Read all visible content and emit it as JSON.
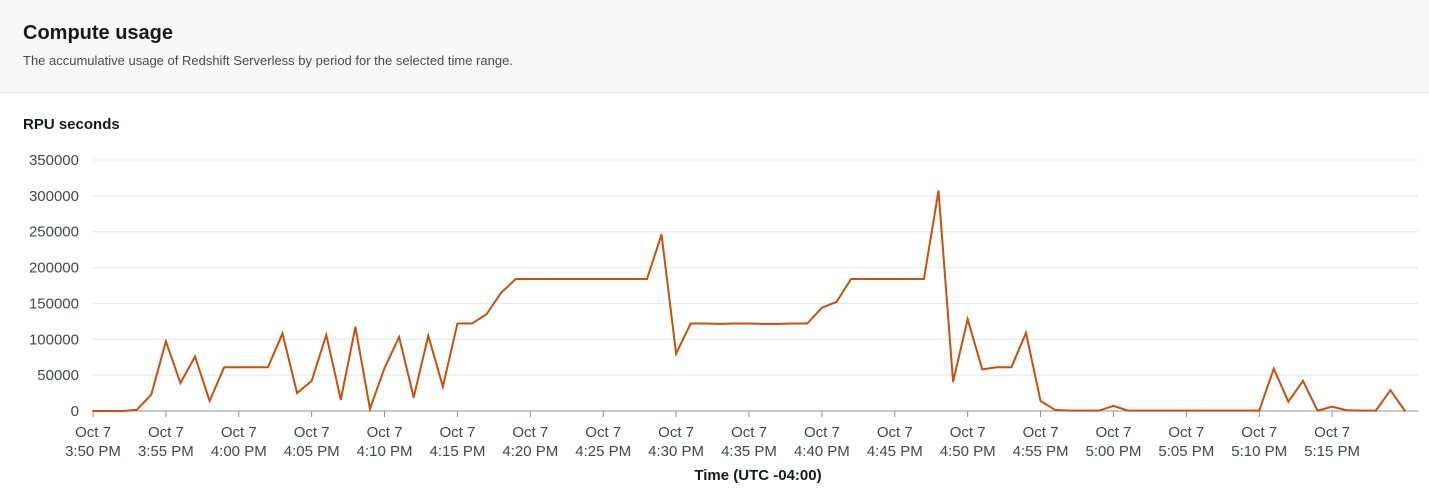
{
  "header": {
    "title": "Compute usage",
    "subtitle": "The accumulative usage of Redshift Serverless by period for the selected time range."
  },
  "colors": {
    "series": "#c7510b",
    "grid": "#e2e4e7",
    "axis": "#8c9198",
    "header_bg": "#f8f8f8"
  },
  "chart_data": {
    "type": "line",
    "ylabel": "RPU seconds",
    "xlabel": "Time (UTC -04:00)",
    "ylim": [
      0,
      350000
    ],
    "yticks": [
      0,
      50000,
      100000,
      150000,
      200000,
      250000,
      300000,
      350000
    ],
    "ytick_labels": [
      "0",
      "50000",
      "100000",
      "150000",
      "200000",
      "250000",
      "300000",
      "350000"
    ],
    "grid": true,
    "xlim_minutes": [
      0,
      90
    ],
    "xticks": [
      {
        "minute": 0,
        "date": "Oct 7",
        "time": "3:50 PM"
      },
      {
        "minute": 5,
        "date": "Oct 7",
        "time": "3:55 PM"
      },
      {
        "minute": 10,
        "date": "Oct 7",
        "time": "4:00 PM"
      },
      {
        "minute": 15,
        "date": "Oct 7",
        "time": "4:05 PM"
      },
      {
        "minute": 20,
        "date": "Oct 7",
        "time": "4:10 PM"
      },
      {
        "minute": 25,
        "date": "Oct 7",
        "time": "4:15 PM"
      },
      {
        "minute": 30,
        "date": "Oct 7",
        "time": "4:20 PM"
      },
      {
        "minute": 35,
        "date": "Oct 7",
        "time": "4:25 PM"
      },
      {
        "minute": 40,
        "date": "Oct 7",
        "time": "4:30 PM"
      },
      {
        "minute": 45,
        "date": "Oct 7",
        "time": "4:35 PM"
      },
      {
        "minute": 50,
        "date": "Oct 7",
        "time": "4:40 PM"
      },
      {
        "minute": 55,
        "date": "Oct 7",
        "time": "4:45 PM"
      },
      {
        "minute": 60,
        "date": "Oct 7",
        "time": "4:50 PM"
      },
      {
        "minute": 65,
        "date": "Oct 7",
        "time": "4:55 PM"
      },
      {
        "minute": 70,
        "date": "Oct 7",
        "time": "5:00 PM"
      },
      {
        "minute": 75,
        "date": "Oct 7",
        "time": "5:05 PM"
      },
      {
        "minute": 80,
        "date": "Oct 7",
        "time": "5:10 PM"
      },
      {
        "minute": 85,
        "date": "Oct 7",
        "time": "5:15 PM"
      }
    ],
    "series": [
      {
        "points": [
          [
            0,
            0
          ],
          [
            1,
            0
          ],
          [
            2,
            0
          ],
          [
            3,
            1500
          ],
          [
            4,
            23000
          ],
          [
            5,
            97000
          ],
          [
            6,
            39000
          ],
          [
            7,
            76000
          ],
          [
            8,
            14000
          ],
          [
            9,
            61000
          ],
          [
            10,
            61000
          ],
          [
            11,
            61000
          ],
          [
            12,
            61000
          ],
          [
            13,
            108000
          ],
          [
            14,
            25000
          ],
          [
            15,
            42000
          ],
          [
            16,
            106000
          ],
          [
            17,
            16000
          ],
          [
            18,
            117000
          ],
          [
            19,
            3000
          ],
          [
            20,
            60000
          ],
          [
            21,
            103000
          ],
          [
            22,
            19000
          ],
          [
            23,
            105000
          ],
          [
            24,
            34000
          ],
          [
            25,
            122000
          ],
          [
            26,
            122000
          ],
          [
            27,
            135000
          ],
          [
            28,
            165000
          ],
          [
            29,
            184000
          ],
          [
            30,
            184000
          ],
          [
            31,
            184000
          ],
          [
            32,
            184000
          ],
          [
            33,
            184000
          ],
          [
            34,
            184000
          ],
          [
            35,
            184000
          ],
          [
            36,
            184000
          ],
          [
            37,
            184000
          ],
          [
            38,
            184000
          ],
          [
            39,
            246000
          ],
          [
            40,
            80000
          ],
          [
            41,
            122000
          ],
          [
            42,
            122000
          ],
          [
            43,
            121500
          ],
          [
            44,
            122000
          ],
          [
            45,
            122000
          ],
          [
            46,
            121500
          ],
          [
            47,
            121500
          ],
          [
            48,
            122000
          ],
          [
            49,
            122000
          ],
          [
            50,
            144000
          ],
          [
            51,
            152000
          ],
          [
            52,
            184000
          ],
          [
            53,
            184000
          ],
          [
            54,
            184000
          ],
          [
            55,
            184000
          ],
          [
            56,
            184000
          ],
          [
            57,
            184000
          ],
          [
            58,
            307000
          ],
          [
            59,
            41000
          ],
          [
            60,
            128000
          ],
          [
            61,
            58000
          ],
          [
            62,
            61000
          ],
          [
            63,
            61000
          ],
          [
            64,
            109000
          ],
          [
            65,
            14000
          ],
          [
            66,
            1500
          ],
          [
            67,
            500
          ],
          [
            68,
            500
          ],
          [
            69,
            500
          ],
          [
            70,
            7000
          ],
          [
            71,
            500
          ],
          [
            72,
            500
          ],
          [
            73,
            500
          ],
          [
            74,
            500
          ],
          [
            75,
            500
          ],
          [
            76,
            500
          ],
          [
            77,
            500
          ],
          [
            78,
            500
          ],
          [
            79,
            500
          ],
          [
            80,
            500
          ],
          [
            81,
            59000
          ],
          [
            82,
            13000
          ],
          [
            83,
            42000
          ],
          [
            84,
            500
          ],
          [
            85,
            6000
          ],
          [
            86,
            1000
          ],
          [
            87,
            500
          ],
          [
            88,
            500
          ],
          [
            89,
            29000
          ],
          [
            90,
            0
          ]
        ]
      }
    ]
  }
}
